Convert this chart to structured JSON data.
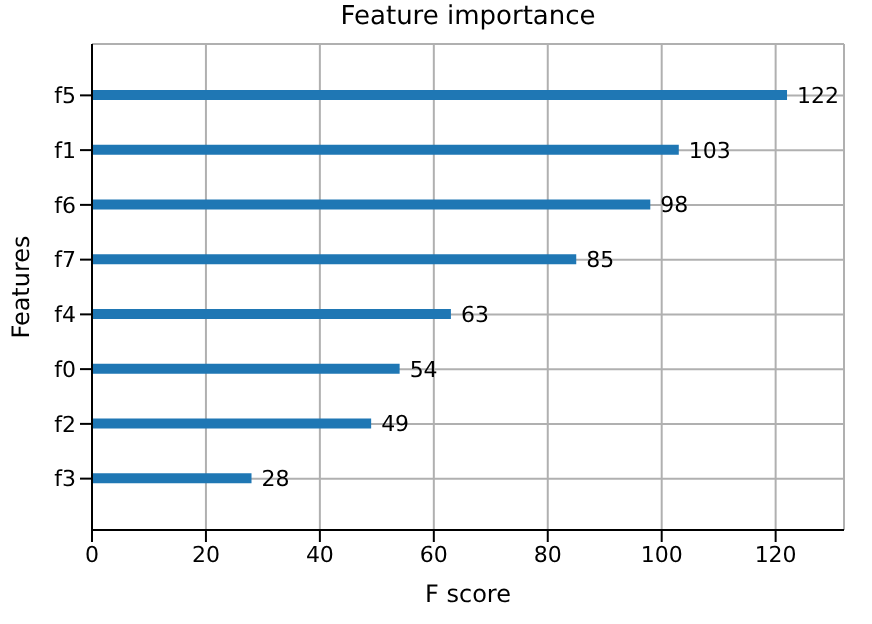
{
  "chart_data": {
    "type": "bar",
    "orientation": "horizontal",
    "title": "Feature importance",
    "xlabel": "F score",
    "ylabel": "Features",
    "categories": [
      "f5",
      "f1",
      "f6",
      "f7",
      "f4",
      "f0",
      "f2",
      "f3"
    ],
    "values": [
      122,
      103,
      98,
      85,
      63,
      54,
      49,
      28
    ],
    "color": "#1f77b4",
    "xlim": [
      0,
      132
    ],
    "xticks": [
      0,
      20,
      40,
      60,
      80,
      100,
      120
    ],
    "grid": true,
    "data_labels": true
  }
}
